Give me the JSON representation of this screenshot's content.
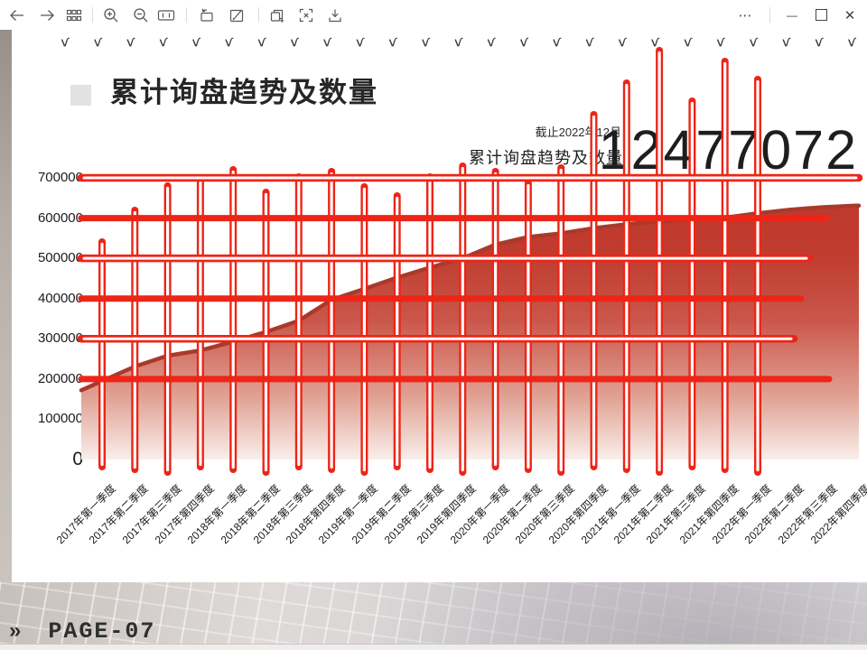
{
  "window": {
    "toolbar_icons": [
      "back",
      "forward",
      "thumbnails",
      "zoom-in",
      "zoom-out",
      "actual-size",
      "crop-rotate",
      "edit",
      "copy-add",
      "extract-text",
      "save"
    ],
    "window_controls": {
      "more": "⋯",
      "minimize": "—",
      "maximize": "",
      "close": "✕"
    }
  },
  "slide": {
    "title": "累计询盘趋势及数量",
    "as_of": "截止2022年12月",
    "chart_subtitle": "累计询盘趋势及数量",
    "big_number": "12477072",
    "footer_marker": "»",
    "page_label": "PAGE-07"
  },
  "chart_data": {
    "type": "area",
    "title": "累计询盘趋势及数量",
    "x_categories": [
      "2017年第一季度",
      "2017年第二季度",
      "2017年第三季度",
      "2017年第四季度",
      "2018年第一季度",
      "2018年第二季度",
      "2018年第三季度",
      "2018年第四季度",
      "2019年第一季度",
      "2019年第二季度",
      "2019年第三季度",
      "2019年第四季度",
      "2020年第一季度",
      "2020年第二季度",
      "2020年第三季度",
      "2020年第四季度",
      "2021年第一季度",
      "2021年第二季度",
      "2021年第三季度",
      "2021年第四季度",
      "2022年第一季度",
      "2022年第二季度",
      "2022年第三季度",
      "2022年第四季度"
    ],
    "values": [
      195000,
      231000,
      258000,
      271000,
      293000,
      317000,
      345000,
      397000,
      424000,
      452000,
      477000,
      500000,
      534000,
      553000,
      562000,
      575000,
      585000,
      592000,
      597000,
      601000,
      612000,
      621000,
      627000,
      631000
    ],
    "yticks": [
      "700000",
      "600000",
      "500000",
      "400000",
      "300000",
      "200000",
      "100000",
      "0"
    ],
    "ylim": [
      0,
      700000
    ],
    "grid": "horizontal hand-drawn red lines, decorative vertical red pins per quarter",
    "legend": "none",
    "accent_color": "#ed2517",
    "area_top_color": "#bf392d",
    "area_edge_color": "#a93a2b"
  },
  "decor": {
    "swirl_char": "ѵ",
    "pin_count": 21,
    "swirl_count": 25
  }
}
